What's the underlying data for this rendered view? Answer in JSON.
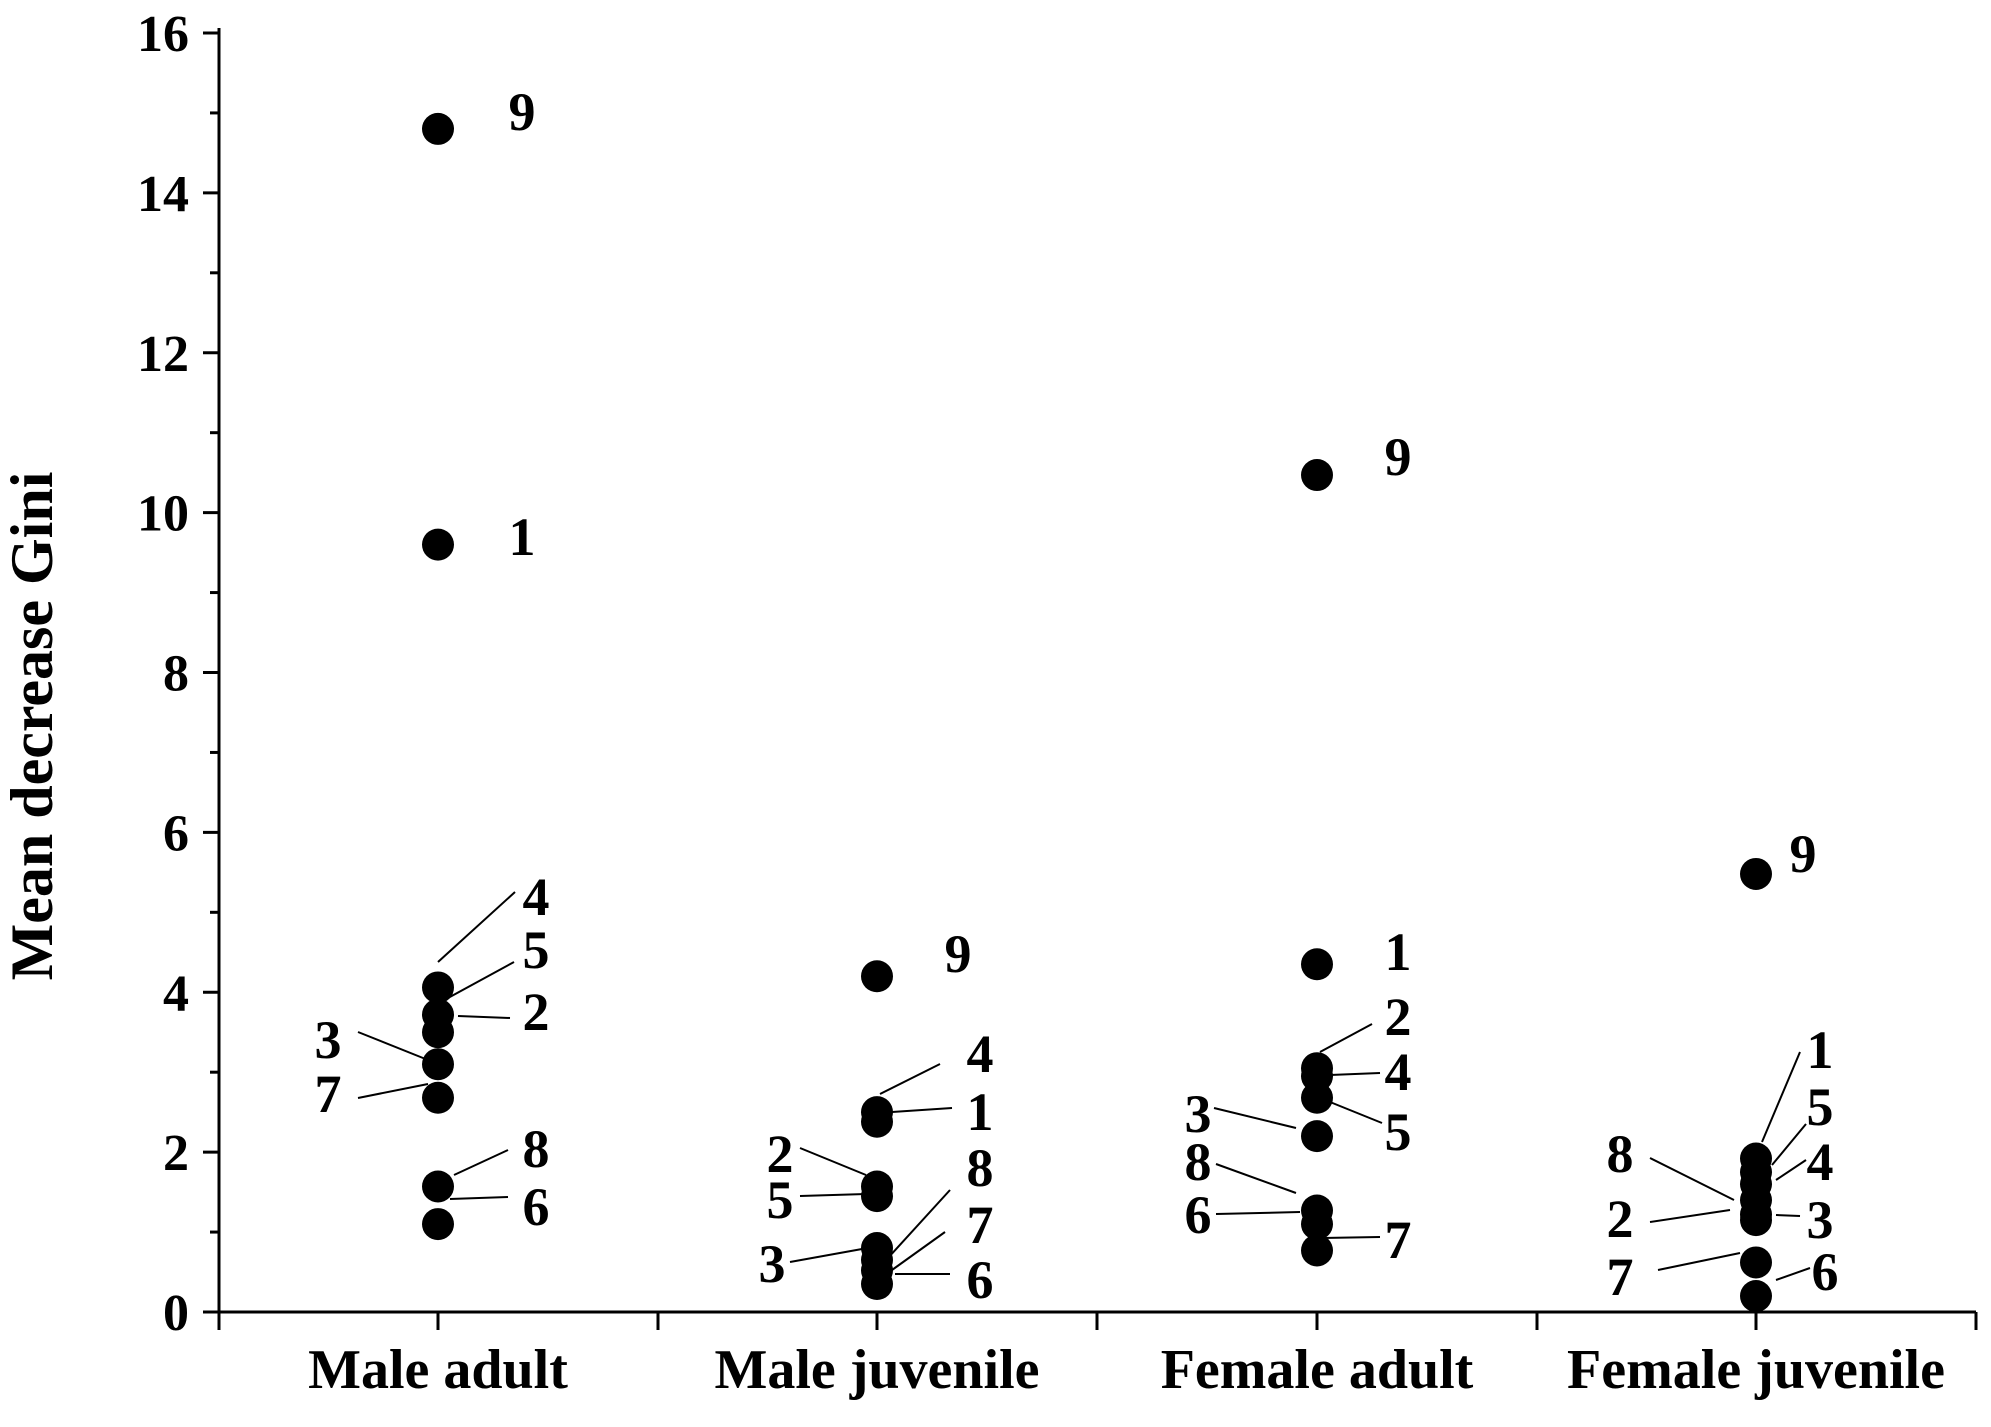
{
  "chart_data": {
    "type": "scatter",
    "title": "",
    "xlabel": "",
    "ylabel": "Mean decrease Gini",
    "categories": [
      "Male adult",
      "Male juvenile",
      "Female adult",
      "Female juvenile"
    ],
    "ylim": [
      0,
      16
    ],
    "yticks": [
      "0",
      "2",
      "4",
      "6",
      "8",
      "10",
      "12",
      "14",
      "16"
    ],
    "grid": false,
    "series": [
      {
        "category": "Male adult",
        "points": [
          {
            "label": "9",
            "value": 14.8
          },
          {
            "label": "1",
            "value": 9.6
          },
          {
            "label": "4",
            "value": 4.06
          },
          {
            "label": "5",
            "value": 3.72
          },
          {
            "label": "2",
            "value": 3.5
          },
          {
            "label": "3",
            "value": 3.1
          },
          {
            "label": "7",
            "value": 2.68
          },
          {
            "label": "8",
            "value": 1.57
          },
          {
            "label": "6",
            "value": 1.1
          }
        ]
      },
      {
        "category": "Male juvenile",
        "points": [
          {
            "label": "9",
            "value": 4.2
          },
          {
            "label": "4",
            "value": 2.5
          },
          {
            "label": "1",
            "value": 2.38
          },
          {
            "label": "2",
            "value": 1.57
          },
          {
            "label": "5",
            "value": 1.45
          },
          {
            "label": "8",
            "value": 0.8
          },
          {
            "label": "7",
            "value": 0.65
          },
          {
            "label": "3",
            "value": 0.52
          },
          {
            "label": "6",
            "value": 0.35
          }
        ]
      },
      {
        "category": "Female adult",
        "points": [
          {
            "label": "9",
            "value": 10.47
          },
          {
            "label": "1",
            "value": 4.35
          },
          {
            "label": "2",
            "value": 3.05
          },
          {
            "label": "4",
            "value": 2.95
          },
          {
            "label": "5",
            "value": 2.68
          },
          {
            "label": "3",
            "value": 2.2
          },
          {
            "label": "8",
            "value": 1.27
          },
          {
            "label": "6",
            "value": 1.1
          },
          {
            "label": "7",
            "value": 0.77
          }
        ]
      },
      {
        "category": "Female juvenile",
        "points": [
          {
            "label": "9",
            "value": 5.48
          },
          {
            "label": "1",
            "value": 1.92
          },
          {
            "label": "5",
            "value": 1.75
          },
          {
            "label": "4",
            "value": 1.6
          },
          {
            "label": "8",
            "value": 1.4
          },
          {
            "label": "3",
            "value": 1.22
          },
          {
            "label": "2",
            "value": 1.15
          },
          {
            "label": "7",
            "value": 0.62
          },
          {
            "label": "6",
            "value": 0.2
          }
        ]
      }
    ]
  }
}
